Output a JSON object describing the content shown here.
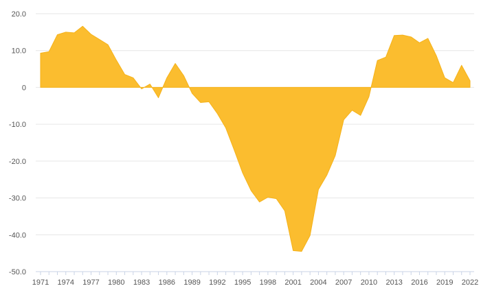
{
  "colors": {
    "area_fill": "#fbbd2f",
    "area_stroke": "#f5b21a",
    "grid": "#e6e6e6",
    "axis": "#c9d3e6",
    "tick_text": "#555555"
  },
  "chart_data": {
    "type": "area",
    "title": "",
    "xlabel": "",
    "ylabel": "",
    "ylim": [
      -50,
      20
    ],
    "y_ticks": [
      20,
      10,
      0,
      -10,
      -20,
      -30,
      -40,
      -50
    ],
    "y_tick_labels": [
      "20.0",
      "10.0",
      "0",
      "-10.0",
      "-20.0",
      "-30.0",
      "-40.0",
      "-50.0"
    ],
    "x_tick_labels": [
      "1971",
      "1974",
      "1977",
      "1980",
      "1983",
      "1986",
      "1989",
      "1992",
      "1995",
      "1998",
      "2001",
      "2004",
      "2007",
      "2010",
      "2013",
      "2016",
      "2019",
      "2022"
    ],
    "grid": true,
    "legend": "none",
    "x": [
      1971,
      1972,
      1973,
      1974,
      1975,
      1976,
      1977,
      1978,
      1979,
      1980,
      1981,
      1982,
      1983,
      1984,
      1985,
      1986,
      1987,
      1988,
      1989,
      1990,
      1991,
      1992,
      1993,
      1994,
      1995,
      1996,
      1997,
      1998,
      1999,
      2000,
      2001,
      2002,
      2003,
      2004,
      2005,
      2006,
      2007,
      2008,
      2009,
      2010,
      2011,
      2012,
      2013,
      2014,
      2015,
      2016,
      2017,
      2018,
      2019,
      2020,
      2021,
      2022
    ],
    "values": [
      9.3,
      9.7,
      14.3,
      15.0,
      14.8,
      16.6,
      14.4,
      13.0,
      11.6,
      7.4,
      3.5,
      2.6,
      -0.4,
      0.9,
      -2.8,
      2.6,
      6.5,
      3.2,
      -1.6,
      -4.1,
      -3.9,
      -7.1,
      -11.0,
      -17.0,
      -23.2,
      -28.0,
      -31.1,
      -29.8,
      -30.2,
      -33.5,
      -44.3,
      -44.5,
      -40.2,
      -27.7,
      -23.8,
      -18.5,
      -8.8,
      -6.2,
      -7.6,
      -2.5,
      7.3,
      8.2,
      14.1,
      14.2,
      13.7,
      12.1,
      13.3,
      8.6,
      2.6,
      1.3,
      6.0,
      1.8
    ]
  }
}
